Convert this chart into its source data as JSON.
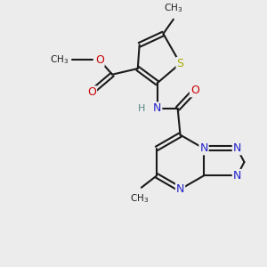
{
  "bg_color": "#ececec",
  "bond_color": "#1a1a1a",
  "N_color": "#2222cc",
  "O_color": "#cc0000",
  "S_color": "#aaaa00",
  "H_color": "#558888",
  "bond_width": 1.5,
  "dbo": 0.025,
  "xlim": [
    0.0,
    3.0
  ],
  "ylim": [
    0.2,
    3.2
  ]
}
